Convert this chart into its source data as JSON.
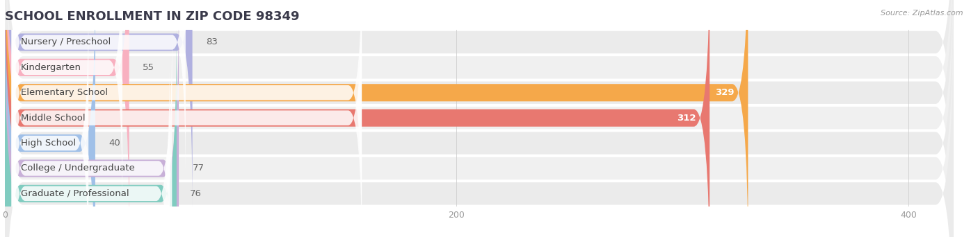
{
  "title": "SCHOOL ENROLLMENT IN ZIP CODE 98349",
  "source": "Source: ZipAtlas.com",
  "categories": [
    "Nursery / Preschool",
    "Kindergarten",
    "Elementary School",
    "Middle School",
    "High School",
    "College / Undergraduate",
    "Graduate / Professional"
  ],
  "values": [
    83,
    55,
    329,
    312,
    40,
    77,
    76
  ],
  "bar_colors": [
    "#b0b0e0",
    "#f8b0c0",
    "#f5a84a",
    "#e87870",
    "#a0c0e8",
    "#c8b0d8",
    "#80ccc0"
  ],
  "background_color": "#ffffff",
  "row_bg_color": "#ebebeb",
  "row_bg_color2": "#f0f0f0",
  "xlim_max": 420,
  "xticks": [
    0,
    200,
    400
  ],
  "title_fontsize": 13,
  "label_fontsize": 9.5,
  "value_fontsize": 9.5,
  "title_color": "#3a3a4a",
  "label_color": "#444444",
  "value_color_dark": "#666666",
  "value_color_white": "#ffffff",
  "source_color": "#999999"
}
